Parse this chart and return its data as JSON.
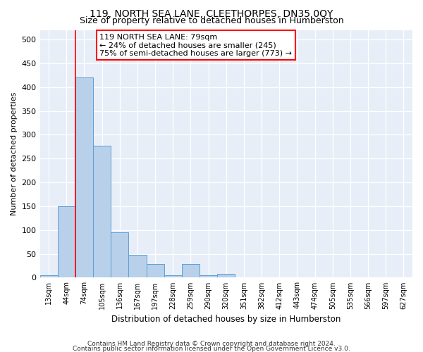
{
  "title": "119, NORTH SEA LANE, CLEETHORPES, DN35 0QY",
  "subtitle": "Size of property relative to detached houses in Humberston",
  "xlabel": "Distribution of detached houses by size in Humberston",
  "ylabel": "Number of detached properties",
  "footer_line1": "Contains HM Land Registry data © Crown copyright and database right 2024.",
  "footer_line2": "Contains public sector information licensed under the Open Government Licence v3.0.",
  "bin_labels": [
    "13sqm",
    "44sqm",
    "74sqm",
    "105sqm",
    "136sqm",
    "167sqm",
    "197sqm",
    "228sqm",
    "259sqm",
    "290sqm",
    "320sqm",
    "351sqm",
    "382sqm",
    "412sqm",
    "443sqm",
    "474sqm",
    "505sqm",
    "535sqm",
    "566sqm",
    "597sqm",
    "627sqm"
  ],
  "bar_heights": [
    5,
    150,
    420,
    277,
    95,
    48,
    28,
    5,
    28,
    5,
    8,
    0,
    0,
    0,
    0,
    0,
    0,
    0,
    0,
    0,
    0
  ],
  "bar_color": "#b8d0ea",
  "bar_edgecolor": "#5a9fd4",
  "red_line_bin_idx": 2,
  "annotation_text": "119 NORTH SEA LANE: 79sqm\n← 24% of detached houses are smaller (245)\n75% of semi-detached houses are larger (773) →",
  "annotation_box_facecolor": "white",
  "annotation_box_edgecolor": "red",
  "ylim": [
    0,
    520
  ],
  "yticks": [
    0,
    50,
    100,
    150,
    200,
    250,
    300,
    350,
    400,
    450,
    500
  ],
  "background_color": "#e8eef8",
  "grid_color": "white",
  "title_fontsize": 10,
  "subtitle_fontsize": 9
}
